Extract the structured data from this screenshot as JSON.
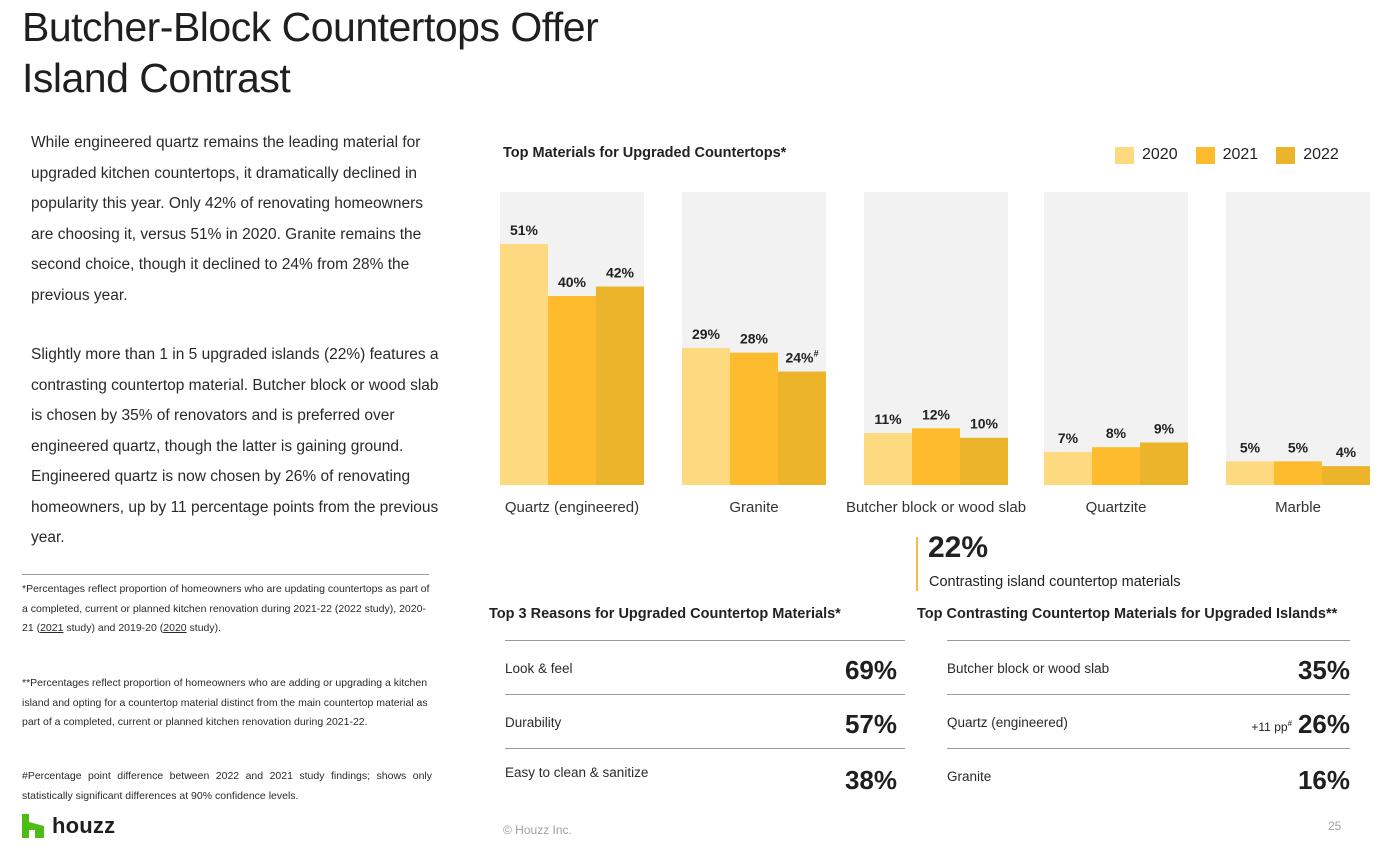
{
  "page": {
    "title_line1": "Butcher-Block Countertops Offer",
    "title_line2": "Island Contrast",
    "paragraph1": "While engineered quartz remains the leading material for upgraded kitchen countertops, it dramatically declined in popularity this year. Only 42% of renovating homeowners are choosing it, versus 51% in 2020. Granite remains the second choice, though it declined to 24% from 28% the previous year.",
    "paragraph2": "Slightly more than 1 in 5 upgraded islands (22%) features a contrasting countertop material. Butcher block or wood slab is chosen by 35% of renovators and is preferred over engineered quartz, though the latter is gaining ground. Engineered quartz is now chosen by 26% of renovating homeowners, up by 11 percentage points from the previous year.",
    "footnote1_a": "*Percentages reflect proportion of homeowners who are updating countertops as part of a completed, current or planned kitchen renovation during 2021-22 (2022 study), 2020-21 (",
    "footnote1_link1": "2021",
    "footnote1_b": " study) and 2019-20 (",
    "footnote1_link2": "2020",
    "footnote1_c": " study).",
    "footnote2": "**Percentages reflect proportion of homeowners who are adding or upgrading a kitchen island and opting for a countertop material distinct from the main countertop material as part of a completed, current or planned kitchen renovation during 2021-22.",
    "footnote3": "#Percentage point difference between 2022 and 2021 study findings; shows only statistically significant differences at 90% confidence levels.",
    "logo_text": "houzz",
    "logo_icon": "houzz-h-icon",
    "copyright": "© Houzz Inc.",
    "page_number": "25"
  },
  "colors": {
    "panel": "#f2f2f2",
    "series_2020": "#fdd97f",
    "series_2021": "#fdbb2d",
    "series_2022": "#ecb42b",
    "accent_rule": "#f2bf45",
    "logo_green": "#4dbc15"
  },
  "chart_data": {
    "type": "bar",
    "title": "Top Materials for Upgraded Countertops*",
    "categories": [
      "Quartz (engineered)",
      "Granite",
      "Butcher block or wood slab",
      "Quartzite",
      "Marble"
    ],
    "series": [
      {
        "name": "2020",
        "values": [
          51,
          29,
          11,
          7,
          5
        ]
      },
      {
        "name": "2021",
        "values": [
          40,
          28,
          12,
          8,
          5
        ]
      },
      {
        "name": "2022",
        "values": [
          42,
          24,
          10,
          9,
          4
        ]
      }
    ],
    "data_labels": [
      [
        "51%",
        "40%",
        "42%"
      ],
      [
        "29%",
        "28%",
        "24%"
      ],
      [
        "11%",
        "12%",
        "10%"
      ],
      [
        "7%",
        "8%",
        "9%"
      ],
      [
        "5%",
        "5%",
        "4%"
      ]
    ],
    "significance_marks": [
      {
        "category": "Granite",
        "series": "2022",
        "mark": "#"
      }
    ],
    "ylim": [
      0,
      62
    ],
    "legend": "top-right",
    "grid": false
  },
  "highlight_stat": {
    "value": "22%",
    "label": "Contrasting island countertop materials"
  },
  "reasons_table": {
    "title": "Top 3 Reasons for Upgraded Countertop Materials*",
    "rows": [
      {
        "label": "Look & feel",
        "value": "69%"
      },
      {
        "label": "Durability",
        "value": "57%"
      },
      {
        "label": "Easy to clean & sanitize",
        "value": "38%"
      }
    ]
  },
  "islands_table": {
    "title": "Top Contrasting Countertop Materials for Upgraded Islands**",
    "rows": [
      {
        "label": "Butcher block or wood slab",
        "value": "35%",
        "change": ""
      },
      {
        "label": "Quartz (engineered)",
        "value": "26%",
        "change": "+11 pp",
        "change_mark": "#"
      },
      {
        "label": "Granite",
        "value": "16%",
        "change": ""
      }
    ]
  }
}
